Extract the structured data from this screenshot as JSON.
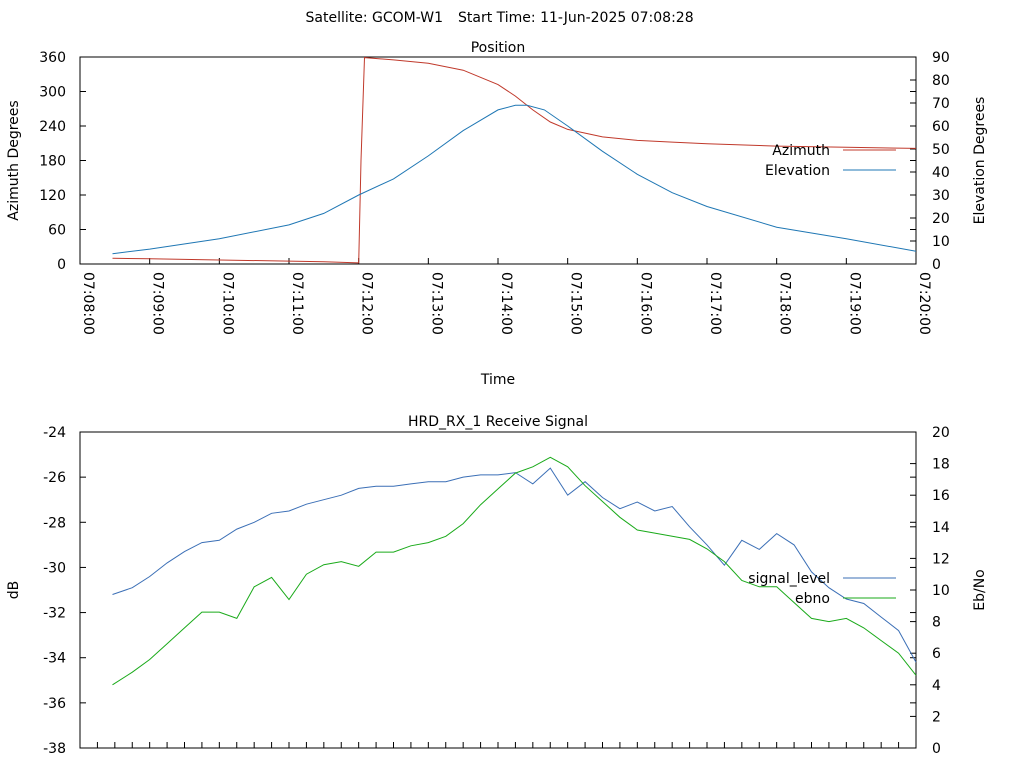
{
  "header": {
    "satellite": "Satellite: GCOM-W1",
    "start_time": "Start Time: 11-Jun-2025 07:08:28"
  },
  "chart_data": [
    {
      "type": "line",
      "title": "Position",
      "xlabel": "Time",
      "ylabel": "Azimuth Degrees",
      "y2label": "Elevation Degrees",
      "xlim": [
        "07:08:00",
        "07:20:00"
      ],
      "x_ticks": [
        "07:08:00",
        "07:09:00",
        "07:10:00",
        "07:11:00",
        "07:12:00",
        "07:13:00",
        "07:14:00",
        "07:15:00",
        "07:16:00",
        "07:17:00",
        "07:18:00",
        "07:19:00",
        "07:20:00"
      ],
      "ylim": [
        0,
        360
      ],
      "y_ticks": [
        0,
        60,
        120,
        180,
        240,
        300,
        360
      ],
      "y2lim": [
        0,
        90
      ],
      "y2_ticks": [
        0,
        10,
        20,
        30,
        40,
        50,
        60,
        70,
        80,
        90
      ],
      "legend_position": "right",
      "series": [
        {
          "name": "Azimuth",
          "axis": "y",
          "color": "#c0392b",
          "x": [
            "07:08:28",
            "07:09:00",
            "07:10:00",
            "07:11:00",
            "07:11:30",
            "07:12:00",
            "07:12:02",
            "07:12:05",
            "07:12:30",
            "07:13:00",
            "07:13:30",
            "07:14:00",
            "07:14:15",
            "07:14:30",
            "07:14:45",
            "07:15:00",
            "07:15:30",
            "07:16:00",
            "07:16:30",
            "07:17:00",
            "07:18:00",
            "07:19:00",
            "07:20:00"
          ],
          "values": [
            10,
            9,
            7,
            5,
            4,
            2,
            180,
            359,
            355,
            349,
            337,
            312,
            292,
            268,
            247,
            234,
            221,
            215,
            212,
            209,
            205,
            203,
            201
          ]
        },
        {
          "name": "Elevation",
          "axis": "y2",
          "color": "#1f77b4",
          "x": [
            "07:08:28",
            "07:09:00",
            "07:10:00",
            "07:11:00",
            "07:11:30",
            "07:12:00",
            "07:12:30",
            "07:13:00",
            "07:13:30",
            "07:14:00",
            "07:14:15",
            "07:14:25",
            "07:14:40",
            "07:15:00",
            "07:15:30",
            "07:16:00",
            "07:16:30",
            "07:17:00",
            "07:18:00",
            "07:19:00",
            "07:20:00"
          ],
          "values": [
            4.5,
            6.5,
            11,
            17,
            22,
            30,
            37,
            47,
            58,
            67,
            69,
            69,
            67,
            60,
            49,
            39,
            31,
            25,
            16,
            11,
            5.5
          ]
        }
      ]
    },
    {
      "type": "line",
      "title": "HRD_RX_1 Receive Signal",
      "ylabel": "dB",
      "y2label": "Eb/No",
      "ylim": [
        -38,
        -24
      ],
      "y_ticks": [
        -38,
        -36,
        -34,
        -32,
        -30,
        -28,
        -26,
        -24
      ],
      "y2lim": [
        0,
        20
      ],
      "y2_ticks": [
        0,
        2,
        4,
        6,
        8,
        10,
        12,
        14,
        16,
        18,
        20
      ],
      "xlim": [
        "07:08:00",
        "07:20:00"
      ],
      "legend_position": "right",
      "series": [
        {
          "name": "signal_level",
          "axis": "y",
          "color": "#3b6fb6",
          "x": [
            "07:08:28",
            "07:08:45",
            "07:09:00",
            "07:09:15",
            "07:09:30",
            "07:09:45",
            "07:10:00",
            "07:10:15",
            "07:10:30",
            "07:10:45",
            "07:11:00",
            "07:11:15",
            "07:11:30",
            "07:11:45",
            "07:12:00",
            "07:12:15",
            "07:12:30",
            "07:12:45",
            "07:13:00",
            "07:13:15",
            "07:13:30",
            "07:13:45",
            "07:14:00",
            "07:14:15",
            "07:14:30",
            "07:14:45",
            "07:15:00",
            "07:15:15",
            "07:15:30",
            "07:15:45",
            "07:16:00",
            "07:16:15",
            "07:16:30",
            "07:16:45",
            "07:17:00",
            "07:17:15",
            "07:17:30",
            "07:17:45",
            "07:18:00",
            "07:18:15",
            "07:18:30",
            "07:18:45",
            "07:19:00",
            "07:19:15",
            "07:19:30",
            "07:19:45",
            "07:20:00"
          ],
          "values": [
            -31.2,
            -30.9,
            -30.4,
            -29.8,
            -29.3,
            -28.9,
            -28.8,
            -28.3,
            -28.0,
            -27.6,
            -27.5,
            -27.2,
            -27.0,
            -26.8,
            -26.5,
            -26.4,
            -26.4,
            -26.3,
            -26.2,
            -26.2,
            -26.0,
            -25.9,
            -25.9,
            -25.8,
            -26.3,
            -25.6,
            -26.8,
            -26.2,
            -26.9,
            -27.4,
            -27.1,
            -27.5,
            -27.3,
            -28.2,
            -29.0,
            -29.9,
            -28.8,
            -29.2,
            -28.5,
            -29.0,
            -30.2,
            -30.9,
            -31.4,
            -31.6,
            -32.2,
            -32.8,
            -34.2
          ]
        },
        {
          "name": "ebno",
          "axis": "y2",
          "color": "#1aaa1a",
          "x": [
            "07:08:28",
            "07:08:45",
            "07:09:00",
            "07:09:15",
            "07:09:30",
            "07:09:45",
            "07:10:00",
            "07:10:15",
            "07:10:30",
            "07:10:45",
            "07:11:00",
            "07:11:15",
            "07:11:30",
            "07:11:45",
            "07:12:00",
            "07:12:15",
            "07:12:30",
            "07:12:45",
            "07:13:00",
            "07:13:15",
            "07:13:30",
            "07:13:45",
            "07:14:00",
            "07:14:15",
            "07:14:30",
            "07:14:45",
            "07:15:00",
            "07:15:15",
            "07:15:30",
            "07:15:45",
            "07:16:00",
            "07:16:15",
            "07:16:30",
            "07:16:45",
            "07:17:00",
            "07:17:15",
            "07:17:30",
            "07:17:45",
            "07:18:00",
            "07:18:15",
            "07:18:30",
            "07:18:45",
            "07:19:00",
            "07:19:15",
            "07:19:30",
            "07:19:45",
            "07:20:00"
          ],
          "values": [
            4.0,
            4.8,
            5.6,
            6.6,
            7.6,
            8.6,
            8.6,
            8.2,
            10.2,
            10.8,
            9.4,
            11.0,
            11.6,
            11.8,
            11.5,
            12.4,
            12.4,
            12.8,
            13.0,
            13.4,
            14.2,
            15.4,
            16.4,
            17.4,
            17.8,
            18.4,
            17.8,
            16.6,
            15.6,
            14.6,
            13.8,
            13.6,
            13.4,
            13.2,
            12.6,
            11.8,
            10.6,
            10.2,
            10.2,
            9.2,
            8.2,
            8.0,
            8.2,
            7.6,
            6.8,
            6.0,
            4.6
          ]
        }
      ]
    }
  ]
}
